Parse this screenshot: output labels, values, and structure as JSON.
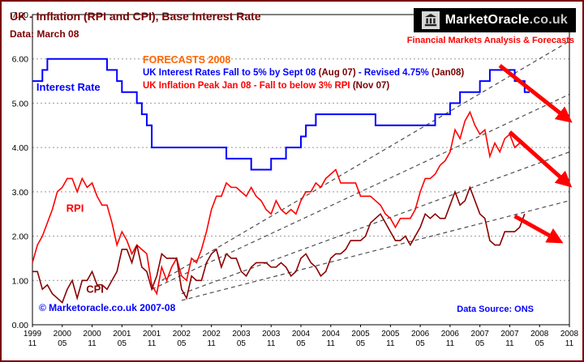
{
  "page": {
    "title": "UK - Inflation (RPI and CPI), Base Interest Rate",
    "subtitle": "Data: March 08",
    "copyright": "© Marketoracle.co.uk 2007-08",
    "data_source": "Data Source: ONS"
  },
  "logo": {
    "brand_main": "MarketOracle",
    "brand_suffix": ".co.uk",
    "tagline": "Financial Markets Analysis & Forecasts"
  },
  "annotations": {
    "heading": "FORECASTS 2008",
    "rate_part1": "UK Interest Rates Fall to 5% by Sept 08 ",
    "rate_part2": "(Aug 07)",
    "rate_part3": " - Revised 4.75% ",
    "rate_part4": "(Jan08)",
    "inflation_part1": "UK Inflation Peak Jan 08 - Fall to below 3% RPI ",
    "inflation_part2": "(Nov 07)"
  },
  "colors": {
    "title_maroon": "#7b0000",
    "annotation_blue": "#0000ff",
    "annotation_red": "#ff0000",
    "forecast_orange": "#ff6600",
    "copyright_blue": "#0000ff"
  },
  "chart_data": {
    "type": "line",
    "title": "UK - Inflation (RPI and CPI), Base Interest Rate",
    "grid": true,
    "grid_color": "#999999",
    "trend_color": "#4d4d4d",
    "arrow_color": "#ff0000",
    "x_axis": {
      "unit": "months since 1999-11",
      "xlim": [
        0,
        108
      ],
      "ticks": [
        {
          "x": 0,
          "year": "1999",
          "month": "11"
        },
        {
          "x": 6,
          "year": "2000",
          "month": "05"
        },
        {
          "x": 12,
          "year": "2000",
          "month": "11"
        },
        {
          "x": 18,
          "year": "2001",
          "month": "05"
        },
        {
          "x": 24,
          "year": "2001",
          "month": "11"
        },
        {
          "x": 30,
          "year": "2002",
          "month": "05"
        },
        {
          "x": 36,
          "year": "2002",
          "month": "11"
        },
        {
          "x": 42,
          "year": "2003",
          "month": "05"
        },
        {
          "x": 48,
          "year": "2003",
          "month": "11"
        },
        {
          "x": 54,
          "year": "2004",
          "month": "05"
        },
        {
          "x": 60,
          "year": "2004",
          "month": "11"
        },
        {
          "x": 66,
          "year": "2005",
          "month": "05"
        },
        {
          "x": 72,
          "year": "2005",
          "month": "11"
        },
        {
          "x": 78,
          "year": "2006",
          "month": "05"
        },
        {
          "x": 84,
          "year": "2006",
          "month": "11"
        },
        {
          "x": 90,
          "year": "2007",
          "month": "05"
        },
        {
          "x": 96,
          "year": "2007",
          "month": "11"
        },
        {
          "x": 102,
          "year": "2008",
          "month": "05"
        },
        {
          "x": 108,
          "year": "2008",
          "month": "11"
        }
      ]
    },
    "y_axis": {
      "ylim": [
        0,
        7
      ],
      "ticks": [
        {
          "v": 7,
          "label": "7.00"
        },
        {
          "v": 6,
          "label": "6.00"
        },
        {
          "v": 5,
          "label": "5.00"
        },
        {
          "v": 4,
          "label": "4.00"
        },
        {
          "v": 3,
          "label": "3.00"
        },
        {
          "v": 2,
          "label": "2.00"
        },
        {
          "v": 1,
          "label": "1.00"
        },
        {
          "v": 0,
          "label": "0.00"
        }
      ]
    },
    "gridlines_y": [
      1,
      2,
      3,
      4,
      5,
      6
    ],
    "series": [
      {
        "name": "Interest Rate",
        "label": "Interest Rate",
        "label_pos": [
          0.8,
          5.28
        ],
        "color": "#0000ff",
        "type": "step",
        "points": [
          [
            0,
            5.5
          ],
          [
            2,
            5.75
          ],
          [
            3,
            6.0
          ],
          [
            15,
            5.75
          ],
          [
            17,
            5.5
          ],
          [
            18,
            5.25
          ],
          [
            21,
            5.0
          ],
          [
            22,
            4.75
          ],
          [
            23,
            4.5
          ],
          [
            24,
            4.0
          ],
          [
            39,
            3.75
          ],
          [
            44,
            3.5
          ],
          [
            48,
            3.75
          ],
          [
            51,
            4.0
          ],
          [
            54,
            4.25
          ],
          [
            55,
            4.5
          ],
          [
            57,
            4.75
          ],
          [
            69,
            4.5
          ],
          [
            81,
            4.75
          ],
          [
            84,
            5.0
          ],
          [
            86,
            5.25
          ],
          [
            90,
            5.5
          ],
          [
            92,
            5.75
          ],
          [
            97,
            5.5
          ],
          [
            99,
            5.25
          ],
          [
            100,
            5.25
          ]
        ]
      },
      {
        "name": "RPI",
        "label": "RPI",
        "label_pos": [
          6.8,
          2.55
        ],
        "color": "#ff0000",
        "type": "line",
        "x_start": 0,
        "values": [
          1.4,
          1.8,
          2.0,
          2.3,
          2.6,
          3.0,
          3.1,
          3.3,
          3.3,
          3.0,
          3.3,
          3.1,
          3.2,
          2.9,
          2.7,
          2.7,
          2.3,
          1.8,
          2.1,
          1.9,
          1.6,
          1.8,
          1.7,
          1.6,
          0.9,
          0.7,
          1.3,
          1.0,
          1.3,
          1.5,
          1.1,
          1.0,
          1.5,
          1.4,
          1.7,
          2.1,
          2.6,
          2.9,
          2.9,
          3.2,
          3.1,
          3.1,
          3.0,
          2.9,
          3.1,
          2.9,
          2.8,
          2.6,
          2.5,
          2.8,
          2.6,
          2.5,
          2.6,
          2.5,
          2.8,
          3.0,
          3.0,
          3.2,
          3.1,
          3.3,
          3.4,
          3.5,
          3.2,
          3.2,
          3.2,
          3.2,
          2.9,
          2.9,
          2.9,
          2.8,
          2.7,
          2.5,
          2.4,
          2.2,
          2.4,
          2.4,
          2.4,
          2.6,
          3.0,
          3.3,
          3.3,
          3.4,
          3.6,
          3.7,
          3.9,
          4.4,
          4.2,
          4.6,
          4.8,
          4.5,
          4.3,
          4.4,
          3.8,
          4.1,
          3.9,
          4.2,
          4.3,
          4.0,
          4.1,
          4.1
        ]
      },
      {
        "name": "CPI",
        "label": "CPI",
        "label_pos": [
          10.8,
          0.72
        ],
        "color": "#8b0000",
        "type": "line",
        "x_start": 0,
        "values": [
          1.2,
          1.2,
          0.8,
          0.9,
          0.7,
          0.6,
          0.5,
          0.8,
          1.0,
          0.6,
          1.0,
          1.0,
          1.2,
          0.9,
          0.9,
          0.8,
          1.0,
          1.2,
          1.7,
          1.7,
          1.4,
          1.8,
          1.3,
          1.2,
          0.8,
          1.1,
          1.6,
          1.5,
          1.5,
          1.5,
          0.8,
          0.6,
          1.1,
          1.0,
          1.0,
          1.4,
          1.6,
          1.7,
          1.3,
          1.6,
          1.5,
          1.5,
          1.2,
          1.1,
          1.3,
          1.4,
          1.4,
          1.4,
          1.3,
          1.3,
          1.4,
          1.3,
          1.1,
          1.2,
          1.5,
          1.6,
          1.4,
          1.3,
          1.1,
          1.2,
          1.5,
          1.6,
          1.6,
          1.7,
          1.9,
          1.9,
          1.9,
          2.0,
          2.3,
          2.4,
          2.5,
          2.3,
          2.1,
          1.9,
          1.9,
          2.0,
          1.8,
          2.0,
          2.2,
          2.5,
          2.4,
          2.5,
          2.4,
          2.4,
          2.7,
          3.0,
          2.7,
          2.8,
          3.1,
          2.8,
          2.5,
          2.4,
          1.9,
          1.8,
          1.8,
          2.1,
          2.1,
          2.1,
          2.2,
          2.5
        ]
      }
    ],
    "trendlines": [
      {
        "from": [
          26,
          1.0
        ],
        "to": [
          108,
          6.4
        ]
      },
      {
        "from": [
          24,
          0.8
        ],
        "to": [
          108,
          5.2
        ]
      },
      {
        "from": [
          30,
          0.7
        ],
        "to": [
          108,
          3.9
        ]
      },
      {
        "from": [
          30,
          0.55
        ],
        "to": [
          108,
          2.8
        ]
      }
    ],
    "forecast_arrows": [
      {
        "from": [
          94,
          5.85
        ],
        "to": [
          107,
          4.7
        ]
      },
      {
        "from": [
          96,
          4.35
        ],
        "to": [
          107,
          3.25
        ]
      },
      {
        "from": [
          97,
          2.45
        ],
        "to": [
          105,
          1.95
        ]
      }
    ]
  }
}
